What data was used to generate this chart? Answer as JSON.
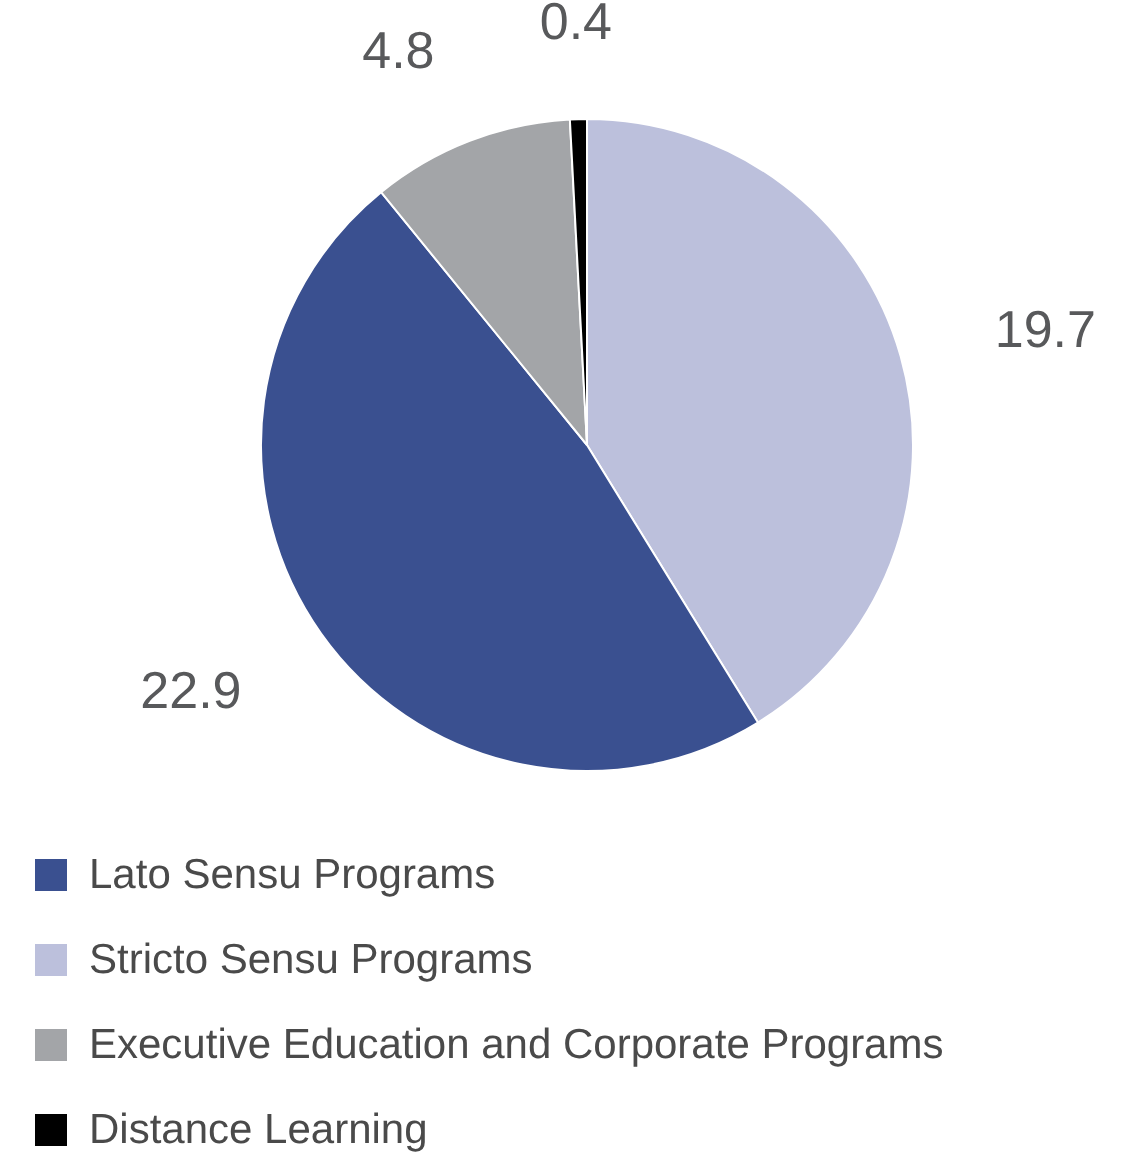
{
  "chart_data": {
    "type": "pie",
    "categories": [
      "Lato Sensu Programs",
      "Stricto Sensu Programs",
      "Executive Education and Corporate Programs",
      "Distance Learning"
    ],
    "values": [
      22.9,
      19.7,
      4.8,
      0.4
    ],
    "colors": [
      "#3a5090",
      "#bcc0dc",
      "#a3a5a8",
      "#000000"
    ],
    "data_labels": true,
    "legend": "bottom"
  }
}
